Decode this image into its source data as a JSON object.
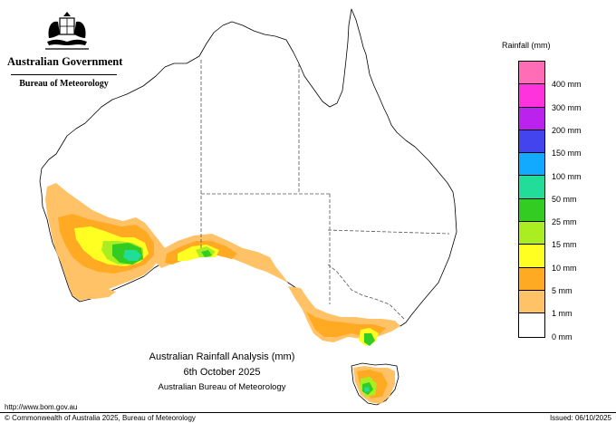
{
  "header": {
    "government": "Australian Government",
    "bureau": "Bureau of Meteorology"
  },
  "legend": {
    "title": "Rainfall (mm)",
    "items": [
      {
        "label": "",
        "color": "#ff6db6"
      },
      {
        "label": "400 mm",
        "color": "#ff33dd"
      },
      {
        "label": "300 mm",
        "color": "#bb22ee"
      },
      {
        "label": "200 mm",
        "color": "#4444ee"
      },
      {
        "label": "150 mm",
        "color": "#11aaff"
      },
      {
        "label": "100 mm",
        "color": "#22dd99"
      },
      {
        "label": "50 mm",
        "color": "#33cc22"
      },
      {
        "label": "25 mm",
        "color": "#aaee22"
      },
      {
        "label": "15 mm",
        "color": "#ffff22"
      },
      {
        "label": "10 mm",
        "color": "#ffaa22"
      },
      {
        "label": "5 mm",
        "color": "#ffc266"
      },
      {
        "label": "1 mm",
        "color": "#ffffff"
      },
      {
        "label": "0 mm",
        "color": ""
      }
    ]
  },
  "caption": {
    "title": "Australian Rainfall Analysis (mm)",
    "date": "6th October 2025",
    "organisation": "Australian Bureau of Meteorology"
  },
  "footer": {
    "url": "http://www.bom.gov.au",
    "copyright": "© Commonwealth of Australia 2025, Bureau of Meteorology",
    "issued": "Issued: 06/10/2025"
  }
}
